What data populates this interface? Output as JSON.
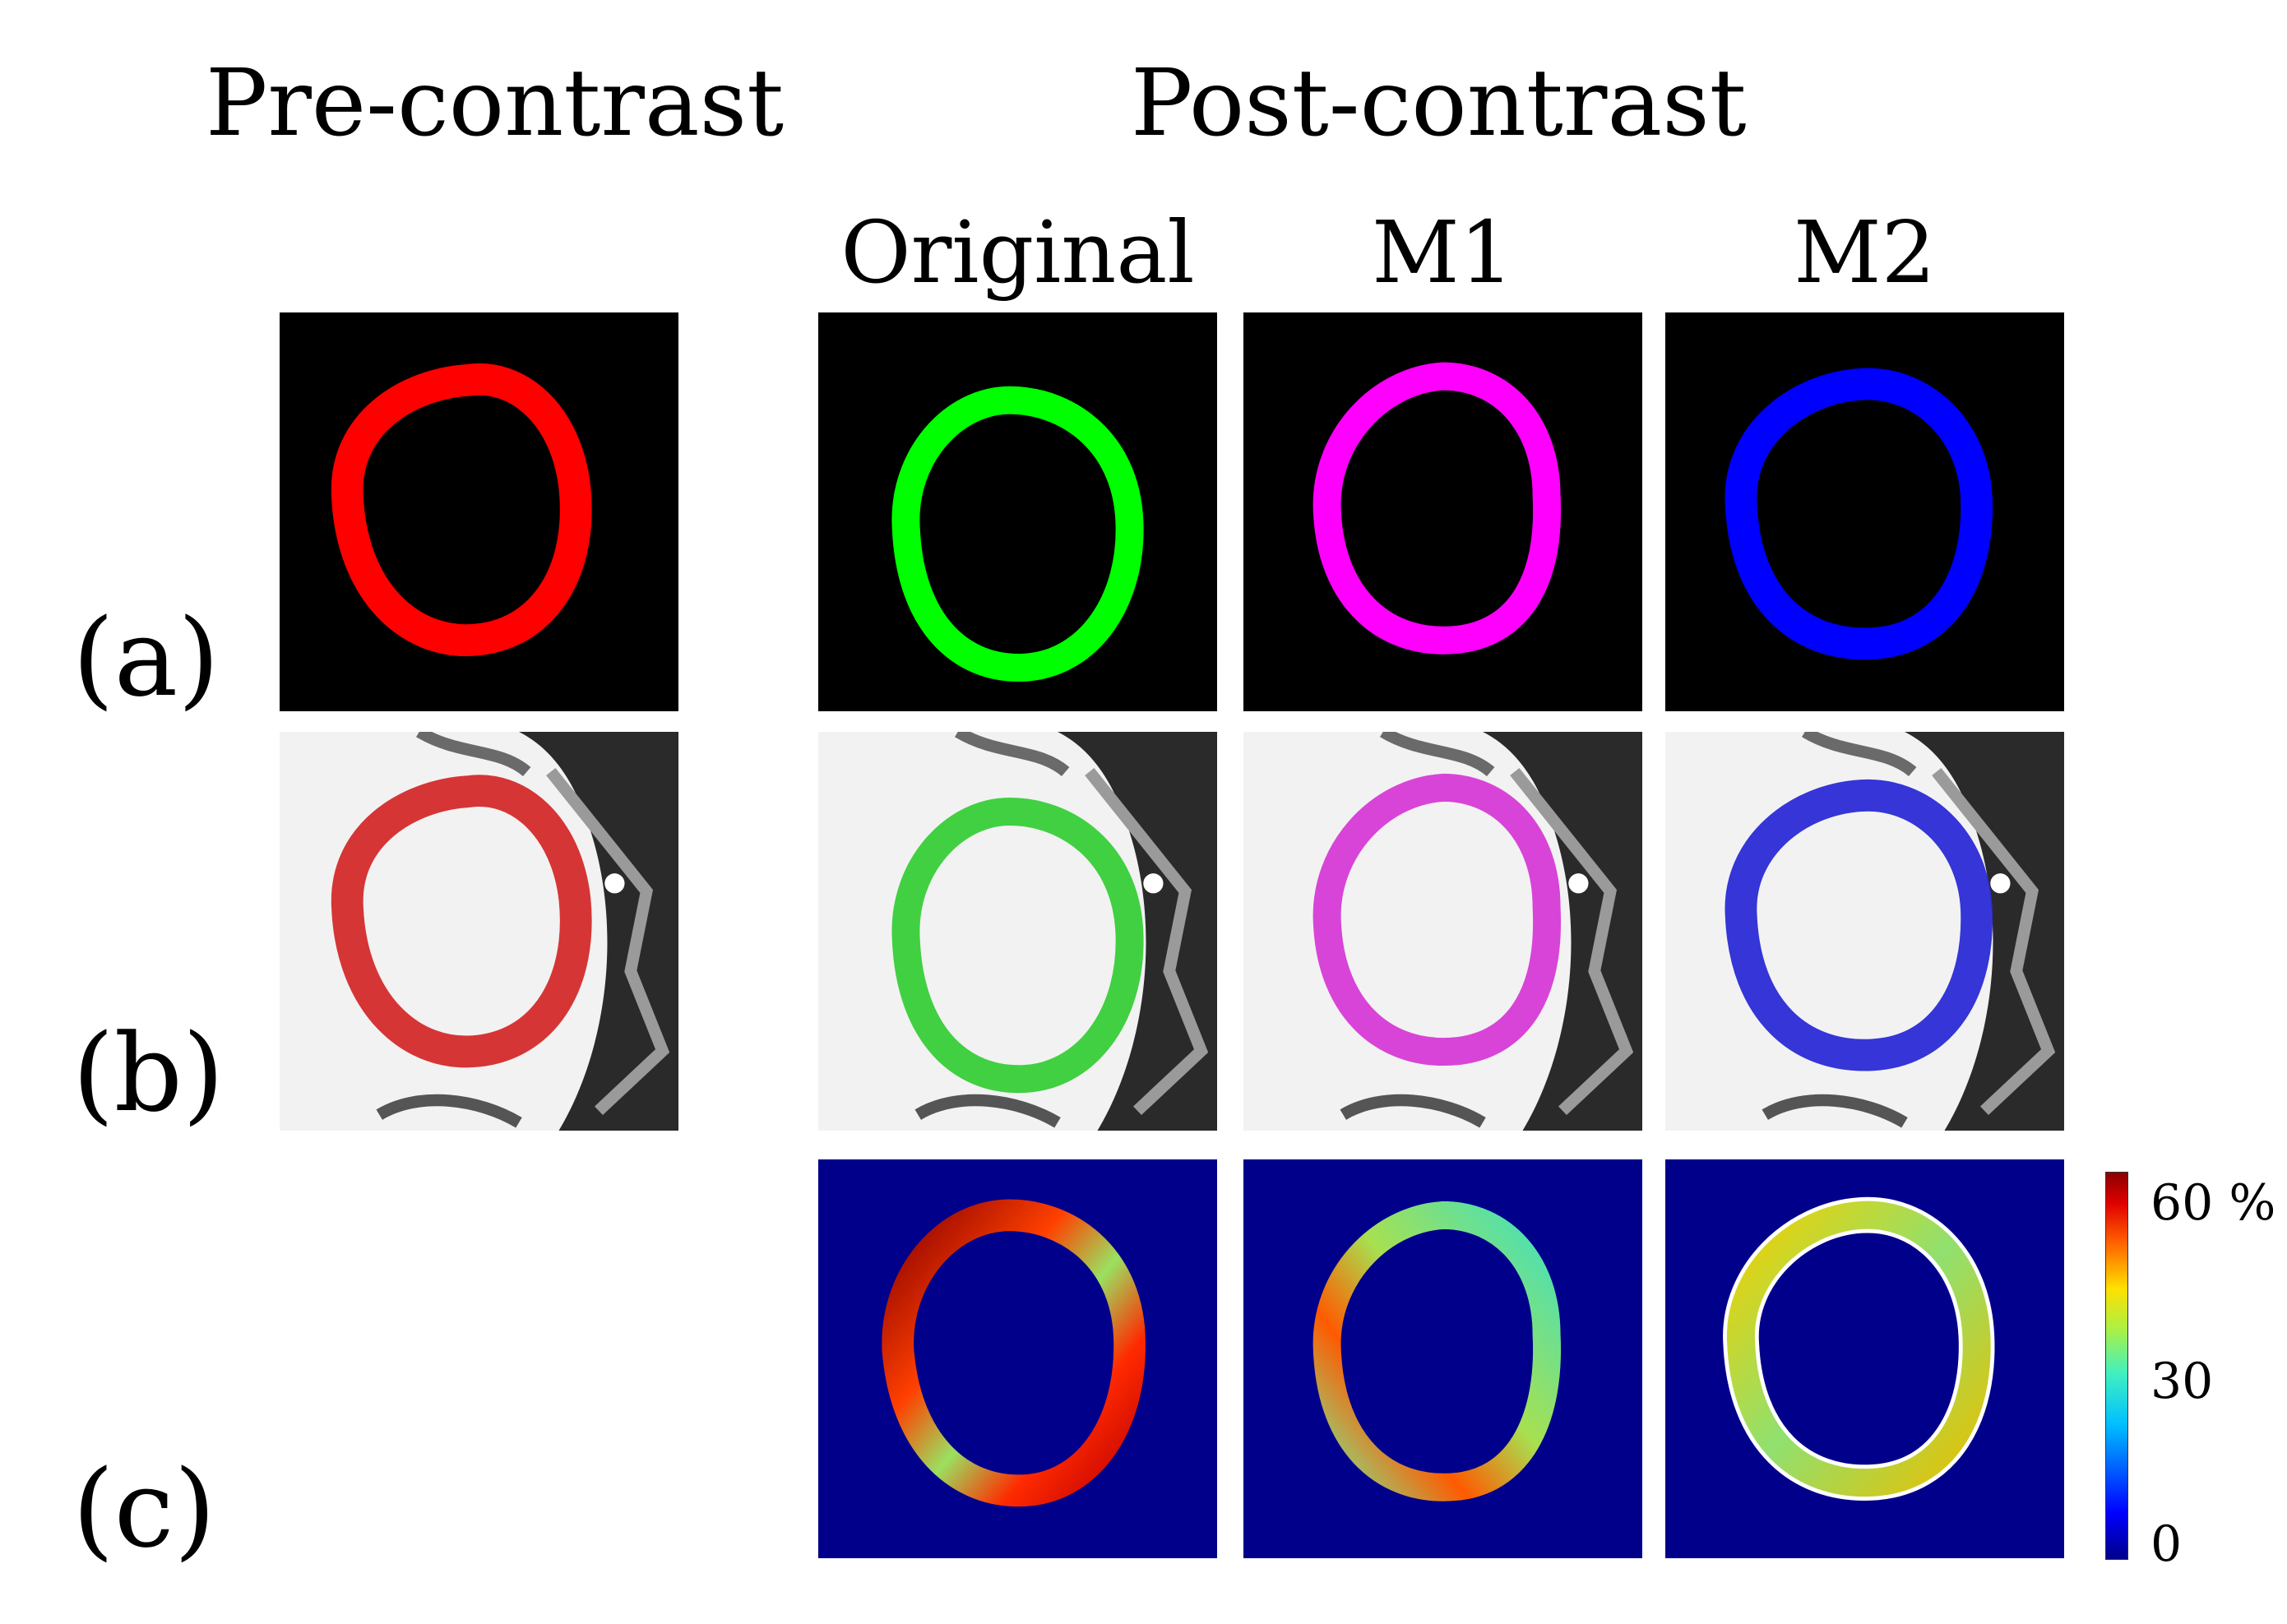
{
  "headers": {
    "pre": "Pre-contrast",
    "post": "Post-contrast",
    "original": "Original",
    "m1": "M1",
    "m2": "M2"
  },
  "rows": {
    "a": "(a)",
    "b": "(b)",
    "c": "(c)"
  },
  "colorbar": {
    "ticks": [
      "60 %",
      "30",
      "0"
    ],
    "range": [
      0,
      60
    ],
    "unit": "%"
  },
  "colors": {
    "pre": "#ff0000",
    "original": "#00ff00",
    "m1": "#ff00ff",
    "m2": "#0000ff",
    "map_background": "#00008b"
  }
}
